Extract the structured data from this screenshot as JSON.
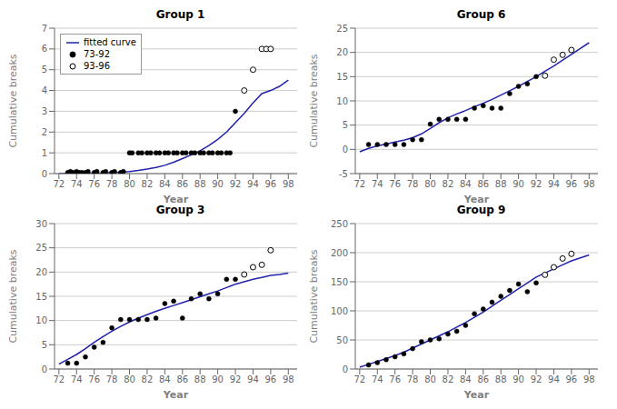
{
  "chart_data": [
    {
      "type": "scatter",
      "title": "Group 1",
      "xlabel": "Year",
      "ylabel": "Cumulative breaks",
      "xlim": [
        71.5,
        99
      ],
      "xticks": [
        72,
        74,
        76,
        78,
        80,
        82,
        84,
        86,
        88,
        90,
        92,
        94,
        96,
        98
      ],
      "ylim": [
        0,
        7
      ],
      "yticks": [
        0,
        1,
        2,
        3,
        4,
        5,
        6,
        7
      ],
      "grid": "y",
      "legend": "upper left",
      "series": [
        {
          "name": "fitted curve",
          "type": "line",
          "color": "#2222aa",
          "x": [
            72,
            73,
            74,
            75,
            76,
            77,
            78,
            79,
            80,
            81,
            82,
            83,
            84,
            85,
            86,
            87,
            88,
            89,
            90,
            91,
            92,
            93,
            94,
            95,
            96,
            97,
            98
          ],
          "values": [
            0.005,
            0.007,
            0.01,
            0.015,
            0.02,
            0.03,
            0.05,
            0.07,
            0.1,
            0.15,
            0.22,
            0.3,
            0.4,
            0.55,
            0.72,
            0.9,
            1.1,
            1.35,
            1.65,
            2.0,
            2.45,
            2.9,
            3.4,
            3.85,
            4.0,
            4.2,
            4.5
          ]
        },
        {
          "name": "73-92",
          "type": "scatter",
          "color": "#000000",
          "marker": "filled circle",
          "x": [
            73,
            73.3,
            73.6,
            74,
            74.3,
            74.6,
            75,
            75.3,
            76,
            76.3,
            77,
            77.3,
            78,
            78.3,
            79,
            79.3,
            80,
            80.3,
            81,
            81.4,
            82,
            82.4,
            83,
            83.4,
            84,
            84.4,
            85,
            85.4,
            86,
            86.4,
            87,
            87.4,
            88,
            88.4,
            89,
            89.4,
            90,
            90.4,
            91,
            91.4,
            92
          ],
          "values": [
            0.05,
            0.1,
            0.05,
            0.1,
            0.05,
            0.05,
            0.05,
            0.1,
            0.05,
            0.1,
            0.05,
            0.1,
            0.05,
            0.1,
            0.05,
            0.1,
            1.0,
            1.0,
            1.0,
            1.0,
            1.0,
            1.0,
            1.0,
            1.0,
            1.0,
            1.0,
            1.0,
            1.0,
            1.0,
            1.0,
            1.0,
            1.0,
            1.0,
            1.0,
            1.0,
            1.0,
            1.0,
            1.0,
            1.0,
            1.0,
            3.0
          ]
        },
        {
          "name": "93-96",
          "type": "scatter",
          "color": "#000000",
          "marker": "open circle",
          "x": [
            93,
            94,
            95,
            95.5,
            96
          ],
          "values": [
            4.0,
            5.0,
            6.0,
            6.0,
            6.0
          ]
        }
      ]
    },
    {
      "type": "scatter",
      "title": "Group 6",
      "xlabel": "Year",
      "ylabel": "Cumulative breaks",
      "xlim": [
        71.5,
        99
      ],
      "xticks": [
        72,
        74,
        76,
        78,
        80,
        82,
        84,
        86,
        88,
        90,
        92,
        94,
        96,
        98
      ],
      "ylim": [
        -5,
        25
      ],
      "yticks": [
        -5,
        0,
        5,
        10,
        15,
        20,
        25
      ],
      "grid": "y",
      "series": [
        {
          "name": "fitted curve",
          "type": "line",
          "color": "#2222aa",
          "x": [
            72,
            73,
            74,
            75,
            76,
            77,
            78,
            79,
            80,
            81,
            82,
            83,
            84,
            85,
            86,
            87,
            88,
            89,
            90,
            91,
            92,
            93,
            94,
            95,
            96,
            97,
            98
          ],
          "values": [
            -0.5,
            0.2,
            0.7,
            1.1,
            1.5,
            1.9,
            2.4,
            3.2,
            4.3,
            5.5,
            6.5,
            7.3,
            8.0,
            8.8,
            9.5,
            10.3,
            11.2,
            12.1,
            13.0,
            14.0,
            15.0,
            16.1,
            17.2,
            18.4,
            19.6,
            20.8,
            22.0
          ]
        },
        {
          "name": "73-92",
          "type": "scatter",
          "color": "#000000",
          "marker": "filled circle",
          "x": [
            73,
            74,
            75,
            76,
            77,
            78,
            79,
            80,
            81,
            82,
            83,
            84,
            85,
            86,
            87,
            88,
            89,
            90,
            91,
            92
          ],
          "values": [
            1.0,
            1.0,
            1.0,
            1.0,
            1.0,
            2.0,
            2.0,
            5.2,
            6.2,
            6.2,
            6.2,
            6.2,
            8.5,
            9.0,
            8.5,
            8.5,
            11.5,
            13.0,
            13.5,
            15.0
          ]
        },
        {
          "name": "93-96",
          "type": "scatter",
          "color": "#000000",
          "marker": "open circle",
          "x": [
            93,
            94,
            95,
            96
          ],
          "values": [
            15.2,
            18.5,
            19.5,
            20.5
          ]
        }
      ]
    },
    {
      "type": "scatter",
      "title": "Group 3",
      "xlabel": "Year",
      "ylabel": "Cumulative breaks",
      "xlim": [
        71.5,
        99
      ],
      "xticks": [
        72,
        74,
        76,
        78,
        80,
        82,
        84,
        86,
        88,
        90,
        92,
        94,
        96,
        98
      ],
      "ylim": [
        0,
        30
      ],
      "yticks": [
        0,
        5,
        10,
        15,
        20,
        25,
        30
      ],
      "grid": "y",
      "series": [
        {
          "name": "fitted curve",
          "type": "line",
          "color": "#2222aa",
          "x": [
            72,
            73,
            74,
            75,
            76,
            77,
            78,
            79,
            80,
            81,
            82,
            83,
            84,
            85,
            86,
            87,
            88,
            89,
            90,
            91,
            92,
            93,
            94,
            95,
            96,
            97,
            98
          ],
          "values": [
            1.0,
            2.0,
            3.0,
            4.2,
            5.5,
            6.7,
            7.8,
            8.8,
            9.7,
            10.5,
            11.2,
            11.9,
            12.5,
            13.1,
            13.7,
            14.3,
            14.9,
            15.5,
            16.1,
            16.8,
            17.5,
            18.0,
            18.5,
            18.9,
            19.3,
            19.5,
            19.8
          ]
        },
        {
          "name": "73-92",
          "type": "scatter",
          "color": "#000000",
          "marker": "filled circle",
          "x": [
            73,
            74,
            75,
            76,
            77,
            78,
            79,
            80,
            81,
            82,
            83,
            84,
            85,
            86,
            87,
            88,
            89,
            90,
            91,
            92
          ],
          "values": [
            1.2,
            1.2,
            2.5,
            4.5,
            5.5,
            8.5,
            10.2,
            10.2,
            10.2,
            10.2,
            10.5,
            13.5,
            14.0,
            10.5,
            14.5,
            15.5,
            14.5,
            15.5,
            18.5,
            18.5
          ]
        },
        {
          "name": "93-96",
          "type": "scatter",
          "color": "#000000",
          "marker": "open circle",
          "x": [
            93,
            94,
            95,
            96
          ],
          "values": [
            19.5,
            21.0,
            21.5,
            24.5
          ]
        }
      ]
    },
    {
      "type": "scatter",
      "title": "Group 9",
      "xlabel": "Year",
      "ylabel": "Cumulative breaks",
      "xlim": [
        71.5,
        99
      ],
      "xticks": [
        72,
        74,
        76,
        78,
        80,
        82,
        84,
        86,
        88,
        90,
        92,
        94,
        96,
        98
      ],
      "ylim": [
        0,
        250
      ],
      "yticks": [
        0,
        50,
        100,
        150,
        200,
        250
      ],
      "grid": "y",
      "series": [
        {
          "name": "fitted curve",
          "type": "line",
          "color": "#2222aa",
          "x": [
            72,
            73,
            74,
            75,
            76,
            77,
            78,
            79,
            80,
            81,
            82,
            83,
            84,
            85,
            86,
            87,
            88,
            89,
            90,
            91,
            92,
            93,
            94,
            95,
            96,
            97,
            98
          ],
          "values": [
            3,
            8,
            13,
            18,
            23,
            29,
            36,
            43,
            50,
            57,
            64,
            72,
            80,
            89,
            98,
            108,
            118,
            128,
            138,
            148,
            158,
            165,
            172,
            179,
            186,
            191,
            196
          ]
        },
        {
          "name": "73-92",
          "type": "scatter",
          "color": "#000000",
          "marker": "filled circle",
          "x": [
            73,
            74,
            75,
            76,
            77,
            78,
            79,
            80,
            81,
            82,
            83,
            84,
            85,
            86,
            87,
            88,
            89,
            90,
            91,
            92
          ],
          "values": [
            7,
            11,
            16,
            21,
            26,
            35,
            47,
            50,
            52,
            60,
            65,
            75,
            95,
            103,
            115,
            125,
            135,
            146,
            133,
            148
          ]
        },
        {
          "name": "93-96",
          "type": "scatter",
          "color": "#000000",
          "marker": "open circle",
          "x": [
            93,
            94,
            95,
            96
          ],
          "values": [
            162,
            175,
            190,
            198
          ]
        }
      ]
    }
  ]
}
